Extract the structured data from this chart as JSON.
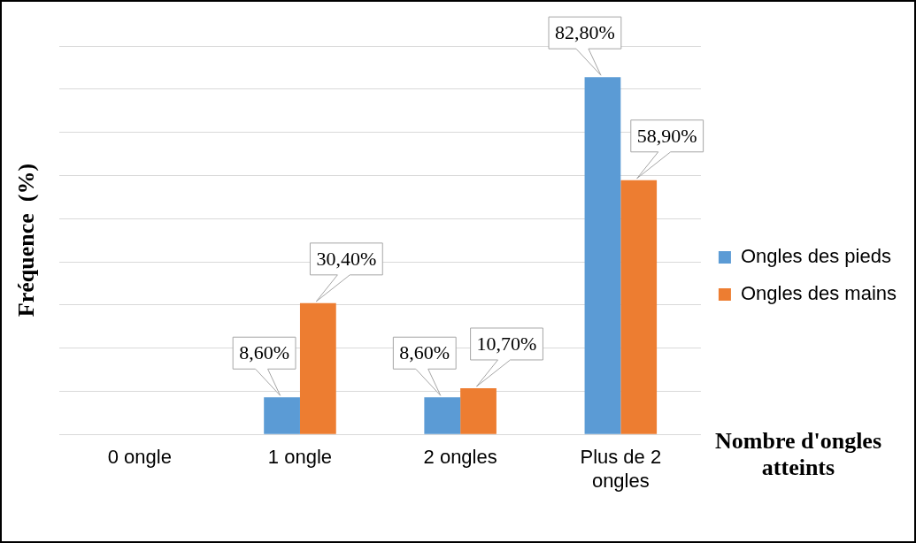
{
  "chart_data": {
    "type": "bar",
    "ylabel": "Fréquence  (%)",
    "xlabel": "Nombre d'ongles atteints",
    "categories": [
      "0 ongle",
      "1 ongle",
      "2 ongles",
      "Plus de 2 ongles"
    ],
    "series": [
      {
        "name": "Ongles des pieds",
        "color": "#5b9bd5",
        "values": [
          0,
          8.6,
          8.6,
          82.8
        ],
        "value_labels": [
          null,
          "8,60%",
          "8,60%",
          "82,80%"
        ]
      },
      {
        "name": "Ongles des mains",
        "color": "#ed7d31",
        "values": [
          0,
          30.4,
          10.7,
          58.9
        ],
        "value_labels": [
          null,
          "30,40%",
          "10,70%",
          "58,90%"
        ]
      }
    ],
    "ylim": [
      0,
      90
    ],
    "yticks": [
      {
        "value": 0,
        "label": null
      },
      {
        "value": 10,
        "label": null
      },
      {
        "value": 20,
        "label": null
      },
      {
        "value": 30,
        "label": null
      },
      {
        "value": 40,
        "label": null
      },
      {
        "value": 50,
        "label": null
      },
      {
        "value": 60,
        "label": null
      },
      {
        "value": 70,
        "label": null
      },
      {
        "value": 80,
        "label": null
      },
      {
        "value": 90,
        "label": null
      }
    ],
    "grid": "y",
    "legend": "right",
    "tick_labels": "x"
  }
}
